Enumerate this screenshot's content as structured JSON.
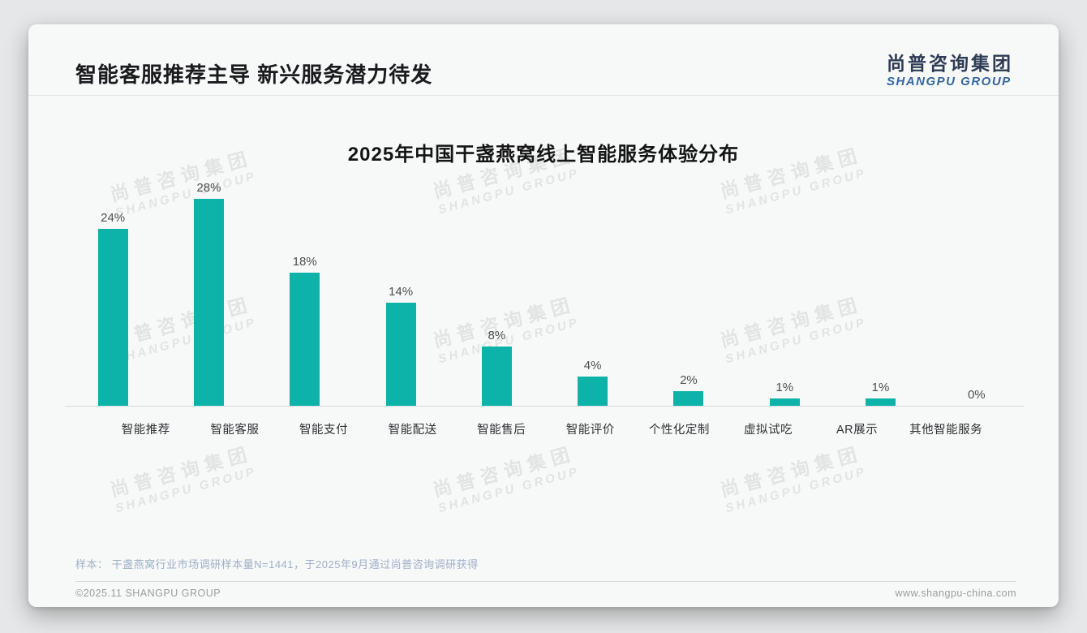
{
  "header": {
    "title": "智能客服推荐主导 新兴服务潜力待发"
  },
  "logo": {
    "cn": "尚普咨询集团",
    "en": "SHANGPU GROUP"
  },
  "watermark": {
    "line1": "尚普咨询集团",
    "line2": "SHANGPU GROUP"
  },
  "chart_data": {
    "type": "bar",
    "title": "2025年中国干盏燕窝线上智能服务体验分布",
    "categories": [
      "智能推荐",
      "智能客服",
      "智能支付",
      "智能配送",
      "智能售后",
      "智能评价",
      "个性化定制",
      "虚拟试吃",
      "AR展示",
      "其他智能服务"
    ],
    "values": [
      24,
      28,
      18,
      14,
      8,
      4,
      2,
      1,
      1,
      0
    ],
    "value_labels": [
      "24%",
      "28%",
      "18%",
      "14%",
      "8%",
      "4%",
      "2%",
      "1%",
      "1%",
      "0%"
    ],
    "unit": "%",
    "ylim": [
      0,
      30
    ],
    "bar_color": "#0db3a8",
    "grid": "off",
    "legend": "none",
    "xlabel": "",
    "ylabel": ""
  },
  "note": "样本： 干盏燕窝行业市场调研样本量N=1441，于2025年9月通过尚普咨询调研获得",
  "footer": {
    "left": "©2025.11 SHANGPU GROUP",
    "right": "www.shangpu-china.com"
  }
}
